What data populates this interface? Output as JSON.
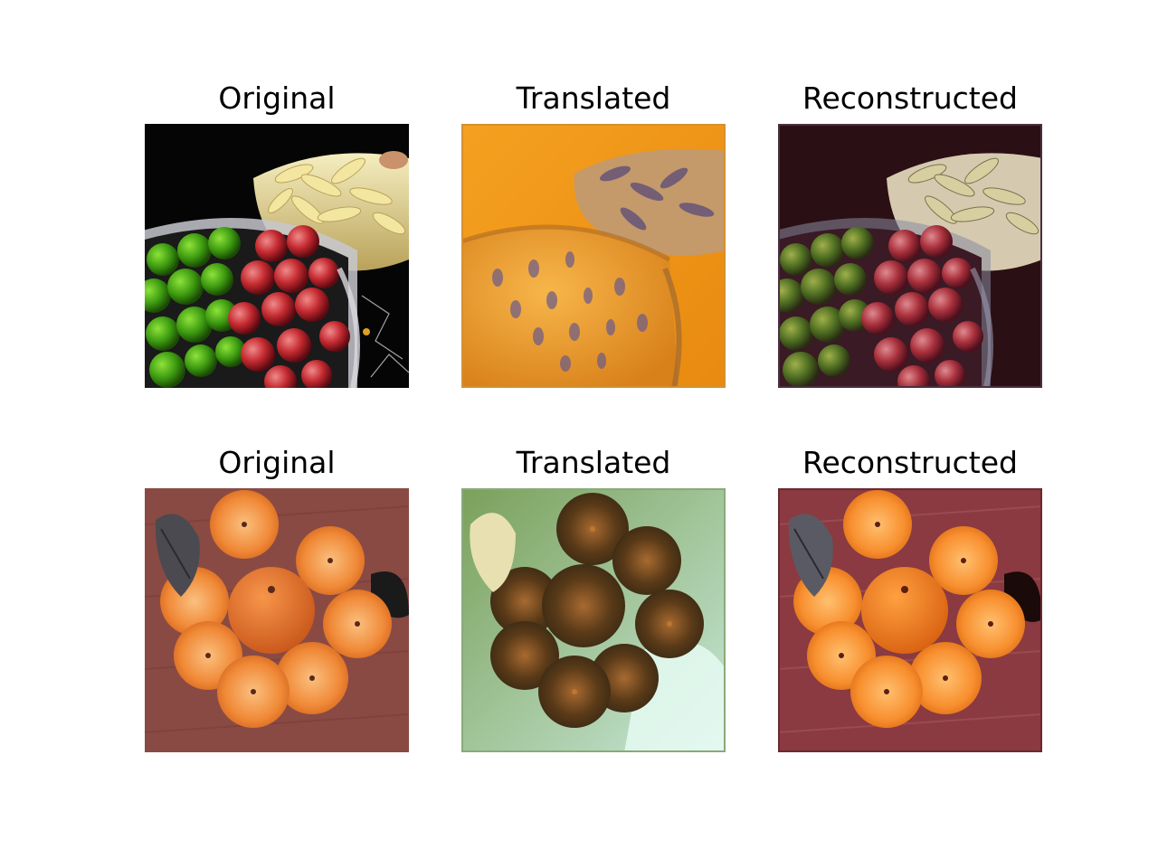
{
  "rows": [
    {
      "panels": [
        {
          "title": "Original"
        },
        {
          "title": "Translated"
        },
        {
          "title": "Reconstructed"
        }
      ]
    },
    {
      "panels": [
        {
          "title": "Original"
        },
        {
          "title": "Translated"
        },
        {
          "title": "Reconstructed"
        }
      ]
    }
  ]
}
